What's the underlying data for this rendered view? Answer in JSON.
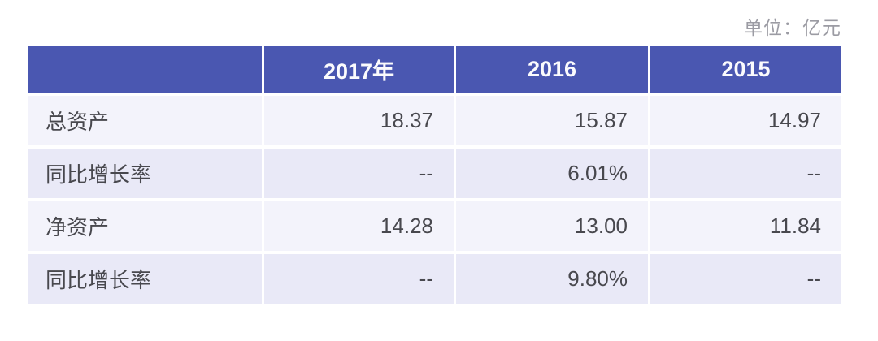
{
  "unit_label": "单位：亿元",
  "colors": {
    "header_bg": "#4a57b1",
    "header_text": "#fbfbfd",
    "row_light": "#f3f3fb",
    "row_dark": "#e9e9f7",
    "body_text": "#48484e",
    "unit_text": "#9b9ba3"
  },
  "chart_data": {
    "type": "table",
    "unit": "亿元",
    "unit_label": "单位：亿元",
    "columns": [
      "",
      "2017年",
      "2016",
      "2015"
    ],
    "rows": [
      {
        "label": "总资产",
        "values": [
          "18.37",
          "15.87",
          "14.97"
        ]
      },
      {
        "label": "同比增长率",
        "values": [
          "--",
          "6.01%",
          "--"
        ]
      },
      {
        "label": "净资产",
        "values": [
          "14.28",
          "13.00",
          "11.84"
        ]
      },
      {
        "label": "同比增长率",
        "values": [
          "--",
          "9.80%",
          "--"
        ]
      }
    ]
  }
}
